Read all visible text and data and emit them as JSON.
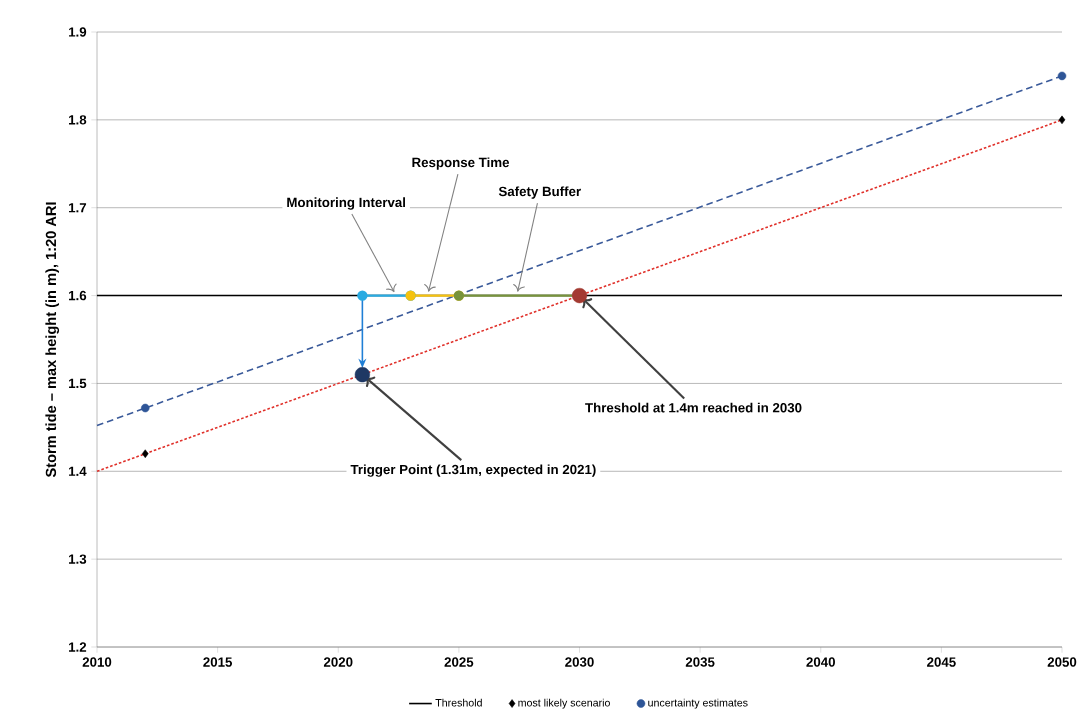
{
  "chart_data": {
    "type": "line",
    "ylabel": "Storm tide – max height (in m), 1:20 ARI",
    "xlim": [
      2010,
      2050
    ],
    "xticks": [
      2010,
      2015,
      2020,
      2025,
      2030,
      2035,
      2040,
      2045,
      2050
    ],
    "ylim": [
      1.2,
      1.9
    ],
    "yticks": [
      1.2,
      1.3,
      1.4,
      1.5,
      1.6,
      1.7,
      1.8,
      1.9
    ],
    "grid": "y",
    "legend": "bottom",
    "series": [
      {
        "name": "Threshold",
        "color": "#000000",
        "x": [
          2010,
          2050
        ],
        "values": [
          1.6,
          1.6
        ],
        "marker": "none",
        "line_style": "solid"
      },
      {
        "color": "#e0302a",
        "x": [
          2010,
          2050
        ],
        "values": [
          1.4,
          1.8
        ],
        "marker": "none",
        "line_style": "dotted"
      },
      {
        "color": "#3a5a9a",
        "x": [
          2010,
          2050
        ],
        "values": [
          1.452,
          1.85
        ],
        "marker": "none",
        "line_style": "dashed"
      },
      {
        "color": "#29abe2",
        "x": [
          2021,
          2023
        ],
        "values": [
          1.6,
          1.6
        ],
        "marker": "circle",
        "line_style": "solid"
      },
      {
        "color": "#f5c20f",
        "x": [
          2023,
          2025
        ],
        "values": [
          1.6,
          1.6
        ],
        "marker": "circle",
        "line_style": "solid"
      },
      {
        "color": "#77933c",
        "x": [
          2025,
          2030
        ],
        "values": [
          1.6,
          1.6
        ],
        "marker": "circle",
        "line_style": "solid"
      },
      {
        "name": "most likely scenario",
        "type": "scatter",
        "color": "#000000",
        "x": [
          2012,
          2050
        ],
        "values": [
          1.42,
          1.8
        ],
        "marker": "diamond"
      },
      {
        "name": "uncertainty estimates",
        "type": "scatter",
        "color": "#2e5597",
        "x": [
          2012,
          2050
        ],
        "values": [
          1.472,
          1.85
        ],
        "marker": "circle"
      },
      {
        "type": "scatter",
        "color": "#a33a32",
        "x": [
          2030
        ],
        "values": [
          1.6
        ],
        "marker": "circle"
      },
      {
        "type": "scatter",
        "color": "#1f3864",
        "x": [
          2021
        ],
        "values": [
          1.51
        ],
        "marker": "circle"
      }
    ],
    "annotations": [
      {
        "text": "Monitoring Interval",
        "x": 2022.4,
        "y": 1.6
      },
      {
        "text": "Response Time",
        "x": 2023.7,
        "y": 1.6
      },
      {
        "text": "Safety Buffer",
        "x": 2027.4,
        "y": 1.6
      },
      {
        "text": "Threshold at 1.4m reached in 2030",
        "x": 2030,
        "y": 1.6
      },
      {
        "text": "Trigger Point (1.31m, expected in 2021)",
        "x": 2021,
        "y": 1.51
      }
    ]
  }
}
